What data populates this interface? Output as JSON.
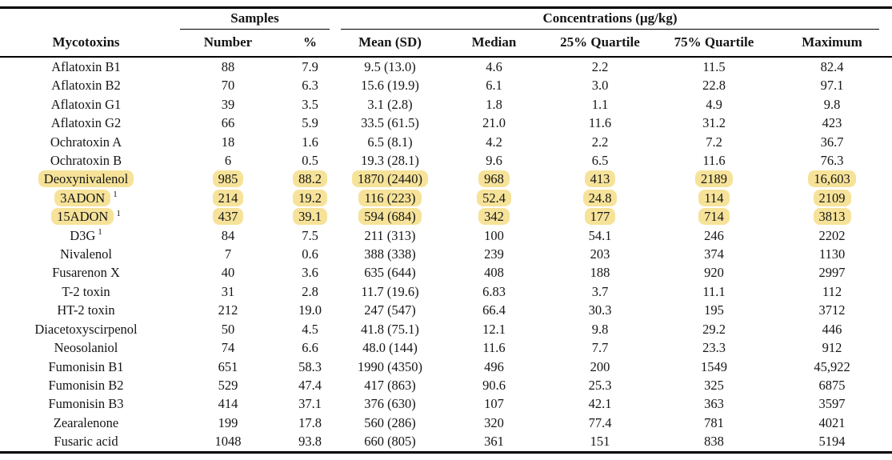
{
  "table": {
    "group_headers": {
      "samples": "Samples",
      "concentrations": "Concentrations (µg/kg)"
    },
    "columns": [
      "Mycotoxins",
      "Number",
      "%",
      "Mean (SD)",
      "Median",
      "25% Quartile",
      "75% Quartile",
      "Maximum"
    ],
    "highlight_color": "#f6e399",
    "rows": [
      {
        "name": "Aflatoxin B1",
        "sup": "",
        "highlighted": false,
        "values": [
          "88",
          "7.9",
          "9.5 (13.0)",
          "4.6",
          "2.2",
          "11.5",
          "82.4"
        ]
      },
      {
        "name": "Aflatoxin B2",
        "sup": "",
        "highlighted": false,
        "values": [
          "70",
          "6.3",
          "15.6 (19.9)",
          "6.1",
          "3.0",
          "22.8",
          "97.1"
        ]
      },
      {
        "name": "Aflatoxin G1",
        "sup": "",
        "highlighted": false,
        "values": [
          "39",
          "3.5",
          "3.1 (2.8)",
          "1.8",
          "1.1",
          "4.9",
          "9.8"
        ]
      },
      {
        "name": "Aflatoxin G2",
        "sup": "",
        "highlighted": false,
        "values": [
          "66",
          "5.9",
          "33.5 (61.5)",
          "21.0",
          "11.6",
          "31.2",
          "423"
        ]
      },
      {
        "name": "Ochratoxin A",
        "sup": "",
        "highlighted": false,
        "values": [
          "18",
          "1.6",
          "6.5 (8.1)",
          "4.2",
          "2.2",
          "7.2",
          "36.7"
        ]
      },
      {
        "name": "Ochratoxin B",
        "sup": "",
        "highlighted": false,
        "values": [
          "6",
          "0.5",
          "19.3 (28.1)",
          "9.6",
          "6.5",
          "11.6",
          "76.3"
        ]
      },
      {
        "name": "Deoxynivalenol",
        "sup": "",
        "highlighted": true,
        "values": [
          "985",
          "88.2",
          "1870 (2440)",
          "968",
          "413",
          "2189",
          "16,603"
        ]
      },
      {
        "name": "3ADON",
        "sup": "1",
        "highlighted": true,
        "values": [
          "214",
          "19.2",
          "116 (223)",
          "52.4",
          "24.8",
          "114",
          "2109"
        ]
      },
      {
        "name": "15ADON",
        "sup": "1",
        "highlighted": true,
        "values": [
          "437",
          "39.1",
          "594 (684)",
          "342",
          "177",
          "714",
          "3813"
        ]
      },
      {
        "name": "D3G",
        "sup": "1",
        "highlighted": false,
        "values": [
          "84",
          "7.5",
          "211 (313)",
          "100",
          "54.1",
          "246",
          "2202"
        ]
      },
      {
        "name": "Nivalenol",
        "sup": "",
        "highlighted": false,
        "values": [
          "7",
          "0.6",
          "388 (338)",
          "239",
          "203",
          "374",
          "1130"
        ]
      },
      {
        "name": "Fusarenon X",
        "sup": "",
        "highlighted": false,
        "values": [
          "40",
          "3.6",
          "635 (644)",
          "408",
          "188",
          "920",
          "2997"
        ]
      },
      {
        "name": "T-2 toxin",
        "sup": "",
        "highlighted": false,
        "values": [
          "31",
          "2.8",
          "11.7 (19.6)",
          "6.83",
          "3.7",
          "11.1",
          "112"
        ]
      },
      {
        "name": "HT-2 toxin",
        "sup": "",
        "highlighted": false,
        "values": [
          "212",
          "19.0",
          "247 (547)",
          "66.4",
          "30.3",
          "195",
          "3712"
        ]
      },
      {
        "name": "Diacetoxyscirpenol",
        "sup": "",
        "highlighted": false,
        "values": [
          "50",
          "4.5",
          "41.8 (75.1)",
          "12.1",
          "9.8",
          "29.2",
          "446"
        ]
      },
      {
        "name": "Neosolaniol",
        "sup": "",
        "highlighted": false,
        "values": [
          "74",
          "6.6",
          "48.0 (144)",
          "11.6",
          "7.7",
          "23.3",
          "912"
        ]
      },
      {
        "name": "Fumonisin B1",
        "sup": "",
        "highlighted": false,
        "values": [
          "651",
          "58.3",
          "1990 (4350)",
          "496",
          "200",
          "1549",
          "45,922"
        ]
      },
      {
        "name": "Fumonisin B2",
        "sup": "",
        "highlighted": false,
        "values": [
          "529",
          "47.4",
          "417 (863)",
          "90.6",
          "25.3",
          "325",
          "6875"
        ]
      },
      {
        "name": "Fumonisin B3",
        "sup": "",
        "highlighted": false,
        "values": [
          "414",
          "37.1",
          "376 (630)",
          "107",
          "42.1",
          "363",
          "3597"
        ]
      },
      {
        "name": "Zearalenone",
        "sup": "",
        "highlighted": false,
        "values": [
          "199",
          "17.8",
          "560 (286)",
          "320",
          "77.4",
          "781",
          "4021"
        ]
      },
      {
        "name": "Fusaric acid",
        "sup": "",
        "highlighted": false,
        "values": [
          "1048",
          "93.8",
          "660 (805)",
          "361",
          "151",
          "838",
          "5194"
        ]
      }
    ]
  }
}
